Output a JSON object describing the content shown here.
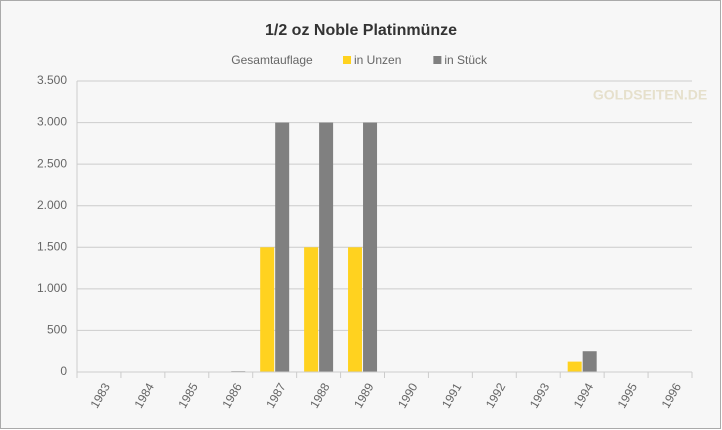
{
  "chart_data": {
    "type": "bar",
    "title": "1/2 oz Noble Platinmünze",
    "legend_title": "Gesamtauflage",
    "watermark": "GOLDSEITEN.DE",
    "categories": [
      "1983",
      "1984",
      "1985",
      "1986",
      "1987",
      "1988",
      "1989",
      "1990",
      "1991",
      "1992",
      "1993",
      "1994",
      "1995",
      "1996"
    ],
    "series": [
      {
        "name": "in Unzen",
        "color": "#ffd21f",
        "values": [
          0,
          0,
          0,
          5,
          1500,
          1500,
          1500,
          0,
          0,
          0,
          0,
          125,
          0,
          0
        ]
      },
      {
        "name": "in Stück",
        "color": "#808080",
        "values": [
          0,
          0,
          0,
          10,
          3000,
          3000,
          3000,
          0,
          0,
          0,
          0,
          250,
          0,
          0
        ]
      }
    ],
    "ylim": [
      0,
      3500
    ],
    "yticks": [
      0,
      500,
      {
        "value": 1000,
        "label": "1.000"
      },
      {
        "value": 1500,
        "label": "1.500"
      },
      {
        "value": 2000,
        "label": "2.000"
      },
      {
        "value": 2500,
        "label": "2.500"
      },
      {
        "value": 3000,
        "label": "3.000"
      },
      {
        "value": 3500,
        "label": "3.500"
      }
    ],
    "grid": true
  }
}
